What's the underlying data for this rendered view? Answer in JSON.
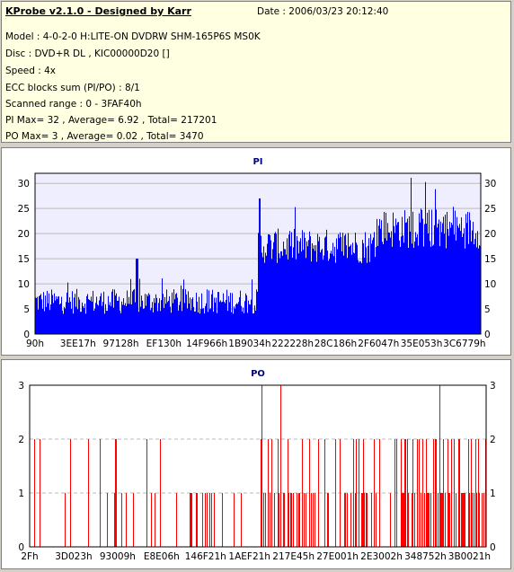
{
  "info": {
    "title": "KProbe v2.1.0 - Designed by Karr",
    "date": "Date : 2006/03/23 20:12:40",
    "lines": [
      "Model : 4-0-2-0 H:LITE-ON DVDRW SHM-165P6S MS0K",
      "Disc : DVD+R DL , KIC00000D20 []",
      "Speed : 4x",
      "ECC blocks sum (PI/PO) : 8/1",
      "Scanned range : 0 - 3FAF40h",
      "PI Max= 32 , Average= 6.92 , Total= 217201",
      "PO Max= 3 , Average= 0.02 , Total= 3470"
    ]
  },
  "colors": {
    "pi_bar": "#0000ff",
    "po_bar": "#ff0000",
    "plot_bg": "#eeeeff",
    "grid": "#bbbbbb"
  },
  "chart_data": [
    {
      "type": "bar",
      "title": "PI",
      "ylim": [
        0,
        32
      ],
      "y_ticks": [
        0,
        5,
        10,
        15,
        20,
        25,
        30
      ],
      "x_tick_labels": [
        "90h",
        "3EE17h",
        "97128h",
        "EF130h",
        "14F966h",
        "1B9034h",
        "222228h",
        "28C186h",
        "2F6047h",
        "35E053h",
        "3C6779h"
      ],
      "grid": true,
      "segments": [
        {
          "range": "0h - 222228h",
          "typical": [
            4,
            9
          ],
          "peaks": [
            12,
            15
          ]
        },
        {
          "range": "222228h - 2F6047h",
          "typical": [
            14,
            21
          ],
          "peaks": [
            26,
            27
          ]
        },
        {
          "range": "2F6047h - 3FAF40h",
          "typical": [
            17,
            25
          ],
          "peaks": [
            30,
            32
          ]
        }
      ],
      "max": 32,
      "average": 6.92
    },
    {
      "type": "bar",
      "title": "PO",
      "ylim": [
        0,
        3
      ],
      "y_ticks": [
        0,
        1,
        2,
        3
      ],
      "x_tick_labels": [
        "2Fh",
        "3D023h",
        "93009h",
        "E8E06h",
        "146F21h",
        "1AEF21h",
        "217E45h",
        "27E001h",
        "2E3002h",
        "348752h",
        "3B0021h"
      ],
      "grid": true,
      "max": 3,
      "average": 0.02,
      "value_3_at_fraction": [
        0.507,
        0.55,
        0.897
      ]
    }
  ]
}
